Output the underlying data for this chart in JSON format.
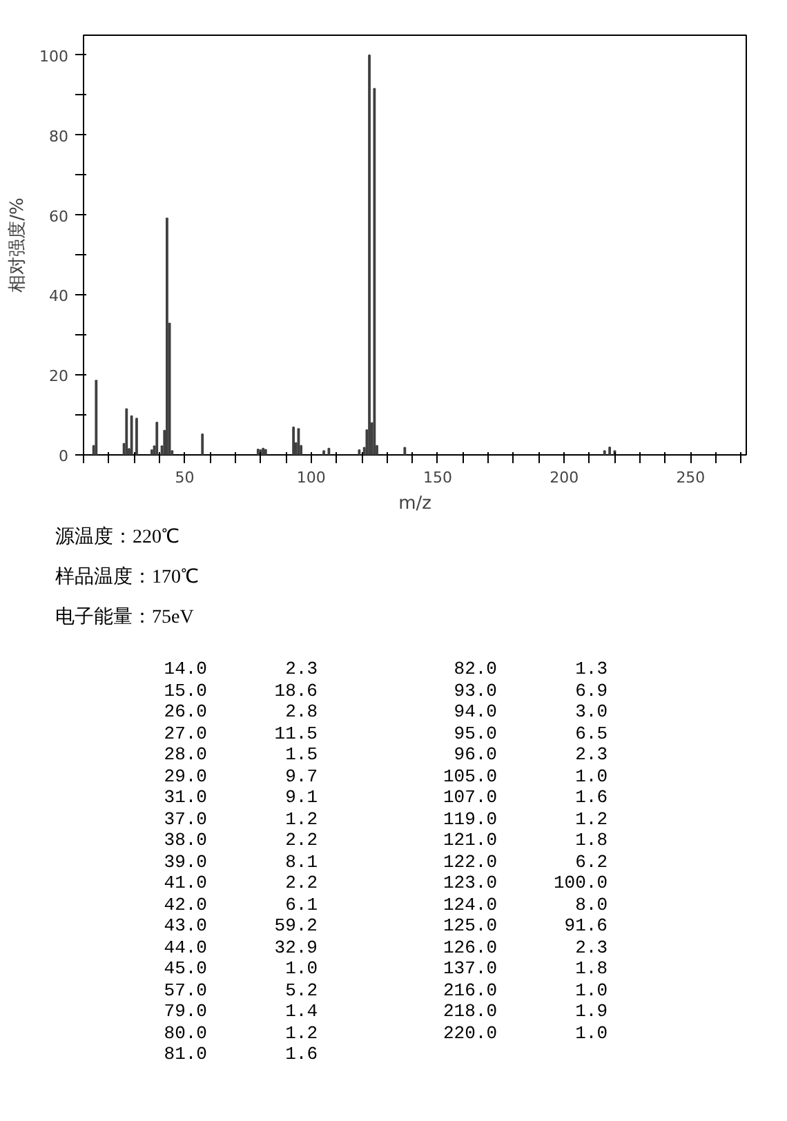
{
  "chart_data": [
    {
      "type": "bar",
      "xlabel": "m/z",
      "ylabel": "相对强度/%",
      "annotations": [
        "源温度：220℃",
        "样品温度：170℃",
        "电子能量：75eV"
      ],
      "x": [
        14.0,
        15.0,
        26.0,
        27.0,
        28.0,
        29.0,
        31.0,
        37.0,
        38.0,
        39.0,
        41.0,
        42.0,
        43.0,
        44.0,
        45.0,
        57.0,
        79.0,
        80.0,
        81.0,
        82.0,
        93.0,
        94.0,
        95.0,
        96.0,
        105.0,
        107.0,
        119.0,
        121.0,
        122.0,
        123.0,
        124.0,
        125.0,
        126.0,
        137.0,
        216.0,
        218.0,
        220.0
      ],
      "values": [
        2.3,
        18.6,
        2.8,
        11.5,
        1.5,
        9.7,
        9.1,
        1.2,
        2.2,
        8.1,
        2.2,
        6.1,
        59.2,
        32.9,
        1.0,
        5.2,
        1.4,
        1.2,
        1.6,
        1.3,
        6.9,
        3.0,
        6.5,
        2.3,
        1.0,
        1.6,
        1.2,
        1.8,
        6.2,
        100.0,
        8.0,
        91.6,
        2.3,
        1.8,
        1.0,
        1.9,
        1.0
      ],
      "color": "#404040",
      "xlim": [
        10,
        272
      ],
      "ylim": [
        0,
        105
      ],
      "xticks": [
        {
          "value": 10,
          "label": null
        },
        {
          "value": 20,
          "label": null
        },
        {
          "value": 30,
          "label": null
        },
        {
          "value": 40,
          "label": null
        },
        50,
        {
          "value": 60,
          "label": null
        },
        {
          "value": 70,
          "label": null
        },
        {
          "value": 80,
          "label": null
        },
        {
          "value": 90,
          "label": null
        },
        100,
        {
          "value": 110,
          "label": null
        },
        {
          "value": 120,
          "label": null
        },
        {
          "value": 130,
          "label": null
        },
        {
          "value": 140,
          "label": null
        },
        150,
        {
          "value": 160,
          "label": null
        },
        {
          "value": 170,
          "label": null
        },
        {
          "value": 180,
          "label": null
        },
        {
          "value": 190,
          "label": null
        },
        200,
        {
          "value": 210,
          "label": null
        },
        {
          "value": 220,
          "label": null
        },
        {
          "value": 230,
          "label": null
        },
        {
          "value": 240,
          "label": null
        },
        250,
        {
          "value": 260,
          "label": null
        },
        {
          "value": 270,
          "label": null
        }
      ],
      "yticks": [
        0,
        {
          "value": 10,
          "label": null
        },
        20,
        {
          "value": 30,
          "label": null
        },
        40,
        {
          "value": 50,
          "label": null
        },
        60,
        {
          "value": 70,
          "label": null
        },
        80,
        {
          "value": 90,
          "label": null
        },
        100
      ]
    },
    {
      "type": "other",
      "annotations": [
        "14.0",
        "2.3",
        "82.0",
        "1.3",
        "15.0",
        "18.6",
        "93.0",
        "6.9",
        "26.0",
        "2.8",
        "94.0",
        "3.0",
        "27.0",
        "11.5",
        "95.0",
        "6.5",
        "28.0",
        "1.5",
        "96.0",
        "2.3",
        "29.0",
        "9.7",
        "105.0",
        "1.0",
        "31.0",
        "9.1",
        "107.0",
        "1.6",
        "37.0",
        "1.2",
        "119.0",
        "1.2",
        "38.0",
        "2.2",
        "121.0",
        "1.8",
        "39.0",
        "8.1",
        "122.0",
        "6.2",
        "41.0",
        "2.2",
        "123.0",
        "100.0",
        "42.0",
        "6.1",
        "124.0",
        "8.0",
        "43.0",
        "59.2",
        "125.0",
        "91.6",
        "44.0",
        "32.9",
        "126.0",
        "2.3",
        "45.0",
        "1.0",
        "137.0",
        "1.8",
        "57.0",
        "5.2",
        "216.0",
        "1.0",
        "79.0",
        "1.4",
        "218.0",
        "1.9",
        "80.0",
        "1.2",
        "220.0",
        "1.0",
        "81.0",
        "1.6"
      ]
    }
  ]
}
